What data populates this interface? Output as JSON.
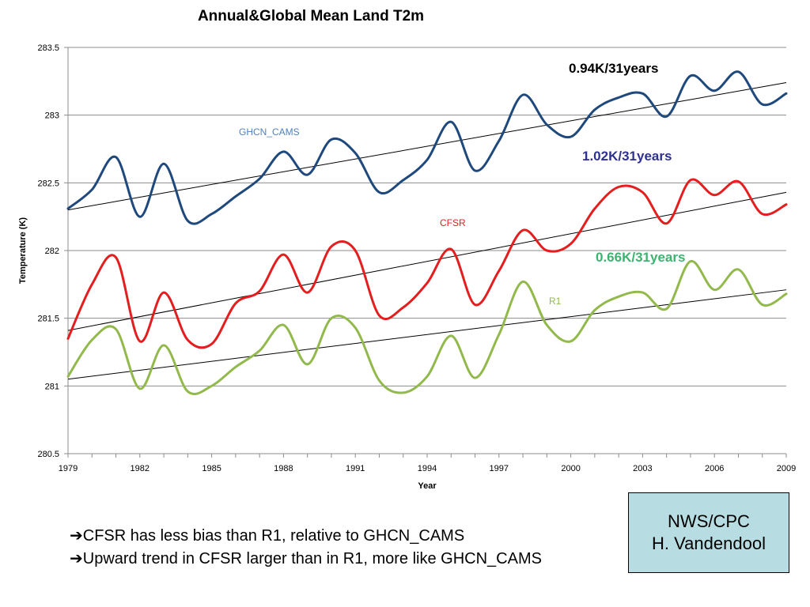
{
  "chart_data": {
    "type": "line",
    "title": "Annual&Global Mean Land T2m",
    "xlabel": "Year",
    "ylabel": "Temperature (K)",
    "xlim": [
      1979,
      2009
    ],
    "ylim": [
      280.5,
      283.5
    ],
    "x_ticks": [
      "1979",
      "1982",
      "1985",
      "1988",
      "1991",
      "1994",
      "1997",
      "2000",
      "2003",
      "2006",
      "2009"
    ],
    "y_ticks": [
      "283.5",
      "283",
      "282.5",
      "282",
      "281.5",
      "281",
      "280.5"
    ],
    "grid": "horizontal",
    "x": [
      1979,
      1980,
      1981,
      1982,
      1983,
      1984,
      1985,
      1986,
      1987,
      1988,
      1989,
      1990,
      1991,
      1992,
      1993,
      1994,
      1995,
      1996,
      1997,
      1998,
      1999,
      2000,
      2001,
      2002,
      2003,
      2004,
      2005,
      2006,
      2007,
      2008,
      2009
    ],
    "series": [
      {
        "name": "GHCN_CAMS",
        "color": "#1f497d",
        "values": [
          282.31,
          282.45,
          282.69,
          282.25,
          282.64,
          282.22,
          282.27,
          282.4,
          282.53,
          282.73,
          282.56,
          282.82,
          282.72,
          282.43,
          282.52,
          282.67,
          282.95,
          282.59,
          282.81,
          283.15,
          282.93,
          282.84,
          283.04,
          283.13,
          283.16,
          282.99,
          283.29,
          283.18,
          283.32,
          283.08,
          283.16
        ],
        "trend": [
          282.3,
          283.24
        ]
      },
      {
        "name": "CFSR",
        "color": "#e41e1e",
        "values": [
          281.35,
          281.75,
          281.95,
          281.33,
          281.69,
          281.34,
          281.31,
          281.61,
          281.7,
          281.97,
          281.69,
          282.03,
          282.0,
          281.52,
          281.58,
          281.76,
          282.01,
          281.6,
          281.85,
          282.15,
          282.0,
          282.05,
          282.31,
          282.47,
          282.43,
          282.2,
          282.52,
          282.41,
          282.51,
          282.27,
          282.34
        ],
        "trend": [
          281.41,
          282.43
        ]
      },
      {
        "name": "R1",
        "color": "#92b94b",
        "values": [
          281.07,
          281.34,
          281.42,
          280.98,
          281.3,
          280.96,
          281.0,
          281.14,
          281.26,
          281.45,
          281.16,
          281.5,
          281.43,
          281.04,
          280.95,
          281.07,
          281.37,
          281.06,
          281.38,
          281.77,
          281.45,
          281.33,
          281.56,
          281.66,
          281.69,
          281.57,
          281.92,
          281.71,
          281.86,
          281.6,
          281.68
        ],
        "trend": [
          281.05,
          281.71
        ]
      }
    ],
    "annotations": [
      {
        "text": "0.94K/31years",
        "color": "#000000"
      },
      {
        "text": "1.02K/31years",
        "color": "#2e3192"
      },
      {
        "text": "0.66K/31years",
        "color": "#3cb371"
      }
    ]
  },
  "notes": {
    "arrow": "➔",
    "line1": "CFSR has less bias than R1, relative to GHCN_CAMS",
    "line2": "Upward trend in CFSR larger than in R1, more like GHCN_CAMS"
  },
  "credit": {
    "line1": "NWS/CPC",
    "line2": "H. Vandendool"
  }
}
